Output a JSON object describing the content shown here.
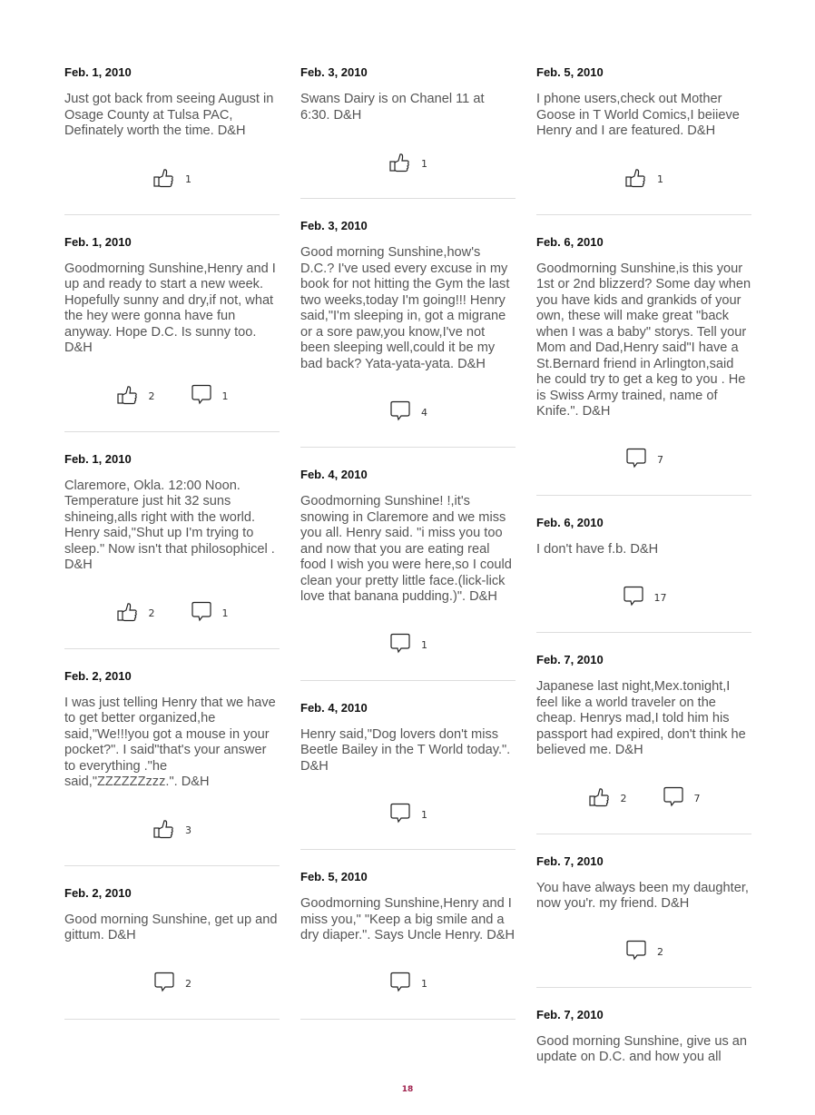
{
  "page_number": "18",
  "colors": {
    "page_number": "#a0224e",
    "divider": "#dddddd"
  },
  "columns": [
    [
      {
        "date": "Feb. 1, 2010",
        "text": "Just got back from seeing August in Osage County at Tulsa PAC, Definately worth the time. D&H",
        "likes": "1",
        "comments": null
      },
      {
        "date": "Feb. 1, 2010",
        "text": "Goodmorning Sunshine,Henry and I up and ready to start a new week. Hopefully sunny and dry,if not, what the hey were gonna have fun anyway. Hope D.C. Is sunny too. D&H",
        "likes": "2",
        "comments": "1"
      },
      {
        "date": "Feb. 1, 2010",
        "text": "Claremore, Okla. 12:00 Noon. Temperature just hit 32 suns shineing,alls right with the world. Henry said,\"Shut up I'm trying to sleep.\" Now isn't that philosophicel . D&H",
        "likes": "2",
        "comments": "1"
      },
      {
        "date": "Feb. 2, 2010",
        "text": "I was just telling Henry that we have to get better organized,he said,\"We!!!you got a mouse in your pocket?\". I said\"that's your answer to everything .\"he said,\"ZZZZZZzzz.\". D&H",
        "likes": "3",
        "comments": null
      },
      {
        "date": "Feb. 2, 2010",
        "text": "Good morning Sunshine, get up and gittum. D&H",
        "likes": null,
        "comments": "2"
      }
    ],
    [
      {
        "date": "Feb. 3, 2010",
        "text": "Swans Dairy is on Chanel 11 at 6:30. D&H",
        "likes": "1",
        "comments": null
      },
      {
        "date": "Feb. 3, 2010",
        "text": "Good morning Sunshine,how's D.C.? I've used every excuse in my book for not hitting the Gym the last two weeks,today I'm going!!! Henry said,\"I'm sleeping in, got a migrane or a sore paw,you know,I've not been sleeping well,could it be my bad back? Yata-yata-yata. D&H",
        "likes": null,
        "comments": "4"
      },
      {
        "date": "Feb. 4, 2010",
        "text": "Goodmorning Sunshine! !,it's snowing in Claremore and we miss you all. Henry said. \"i miss you too and now that you are eating real food I wish you were here,so I could clean your pretty little face.(lick-lick love that banana pudding.)\". D&H",
        "likes": null,
        "comments": "1"
      },
      {
        "date": "Feb. 4, 2010",
        "text": "Henry said,\"Dog lovers don't miss Beetle Bailey in the T World today.\". D&H",
        "likes": null,
        "comments": "1"
      },
      {
        "date": "Feb. 5, 2010",
        "text": "Goodmorning Sunshine,Henry and I miss you,\" \"Keep a big smile and a dry diaper.\". Says Uncle Henry. D&H",
        "likes": null,
        "comments": "1"
      }
    ],
    [
      {
        "date": "Feb. 5, 2010",
        "text": "I phone users,check out Mother Goose in T World Comics,I beiieve Henry and I are featured. D&H",
        "likes": "1",
        "comments": null
      },
      {
        "date": "Feb. 6, 2010",
        "text": "Goodmorning Sunshine,is this your 1st or 2nd blizzerd? Some day when you have kids and grankids of your own, these will make great \"back when I was a baby\" storys. Tell your Mom and Dad,Henry said\"I have a St.Bernard friend in Arlington,said he could try to get a keg to you . He is Swiss Army trained, name of Knife.\". D&H",
        "likes": null,
        "comments": "7"
      },
      {
        "date": "Feb. 6, 2010",
        "text": "I don't have f.b. D&H",
        "likes": null,
        "comments": "17"
      },
      {
        "date": "Feb. 7, 2010",
        "text": "Japanese last night,Mex.tonight,I feel like a world traveler on the cheap. Henrys mad,I told him his passport had expired, don't think he believed me. D&H",
        "likes": "2",
        "comments": "7"
      },
      {
        "date": "Feb. 7, 2010",
        "text": "You have always been my daughter, now you'r. my friend. D&H",
        "likes": null,
        "comments": "2"
      },
      {
        "date": "Feb. 7, 2010",
        "text": "Good morning Sunshine, give us an update on D.C. and how you all",
        "likes": null,
        "comments": null,
        "truncated": true
      }
    ]
  ]
}
